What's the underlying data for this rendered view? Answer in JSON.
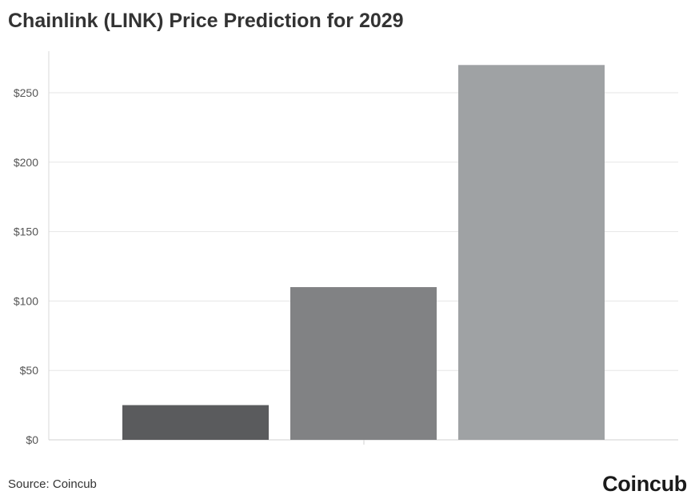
{
  "title": "Chainlink (LINK) Price Prediction for 2029",
  "source": "Source: Coincub",
  "logo": "Coincub",
  "chart_data": {
    "type": "bar",
    "title": "Chainlink (LINK) Price Prediction for 2029",
    "xlabel": "",
    "ylabel": "",
    "categories": [
      "",
      "",
      ""
    ],
    "values": [
      25,
      110,
      270
    ],
    "colors": [
      "#5a5b5d",
      "#818284",
      "#9fa2a4"
    ],
    "ylim": [
      0,
      280
    ],
    "yticks": [
      0,
      50,
      100,
      150,
      200,
      250
    ],
    "ytick_labels": [
      "$0",
      "$50",
      "$100",
      "$150",
      "$200",
      "$250"
    ],
    "grid": true,
    "legend": "none"
  }
}
